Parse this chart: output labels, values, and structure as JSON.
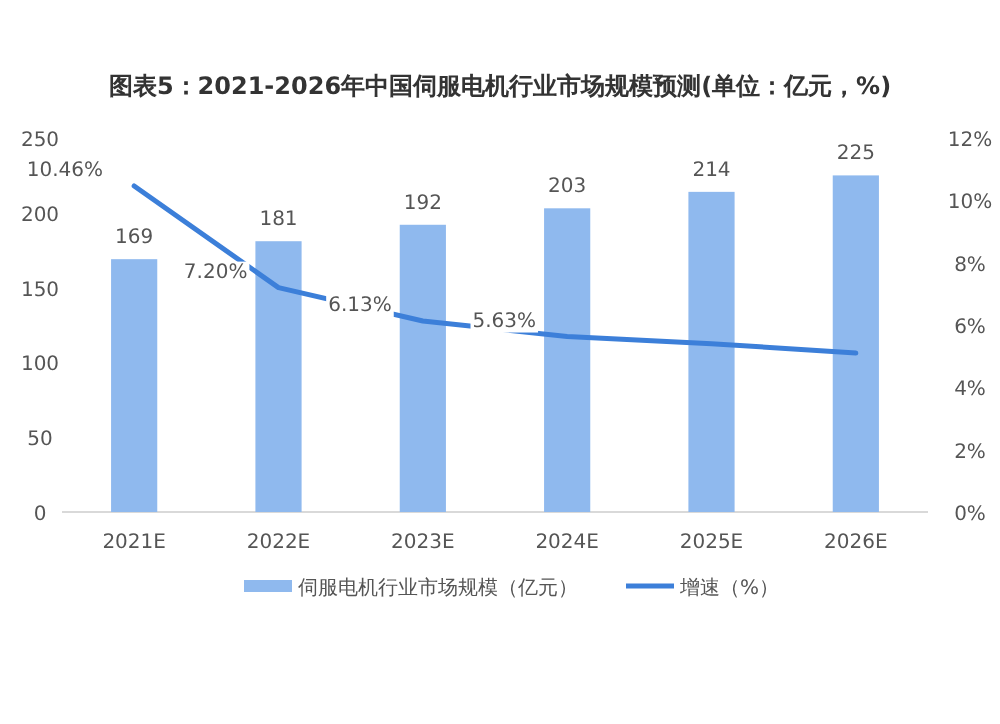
{
  "chart_data": {
    "type": "bar",
    "title": "图表5：2021-2026年中国伺服电机行业市场规模预测(单位：亿元，%)",
    "categories": [
      "2021E",
      "2022E",
      "2023E",
      "2024E",
      "2025E",
      "2026E"
    ],
    "series": [
      {
        "name": "伺服电机行业市场规模（亿元）",
        "color": "#8fb9ee",
        "values": [
          169,
          181,
          192,
          203,
          214,
          225
        ],
        "value_labels": [
          "169",
          "181",
          "192",
          "203",
          "214",
          "225"
        ]
      },
      {
        "name": "增速（%）",
        "type": "line",
        "axis": "y2",
        "color": "#3c7fd9",
        "values": [
          10.46,
          7.2,
          6.13,
          5.63,
          5.4,
          5.1
        ],
        "value_labels": [
          "10.46%",
          "7.20%",
          "6.13%",
          "5.63%",
          null,
          null
        ]
      }
    ],
    "ylim": [
      0,
      250
    ],
    "yticks": [
      0,
      50,
      100,
      150,
      200,
      250
    ],
    "y2lim": [
      0,
      12
    ],
    "y2ticks": [
      {
        "value": 0,
        "label": "0%"
      },
      {
        "value": 2,
        "label": "2%"
      },
      {
        "value": 4,
        "label": "4%"
      },
      {
        "value": 6,
        "label": "6%"
      },
      {
        "value": 8,
        "label": "8%"
      },
      {
        "value": 10,
        "label": "10%"
      },
      {
        "value": 12,
        "label": "12%"
      }
    ],
    "legend": "bottom",
    "grid": false
  }
}
